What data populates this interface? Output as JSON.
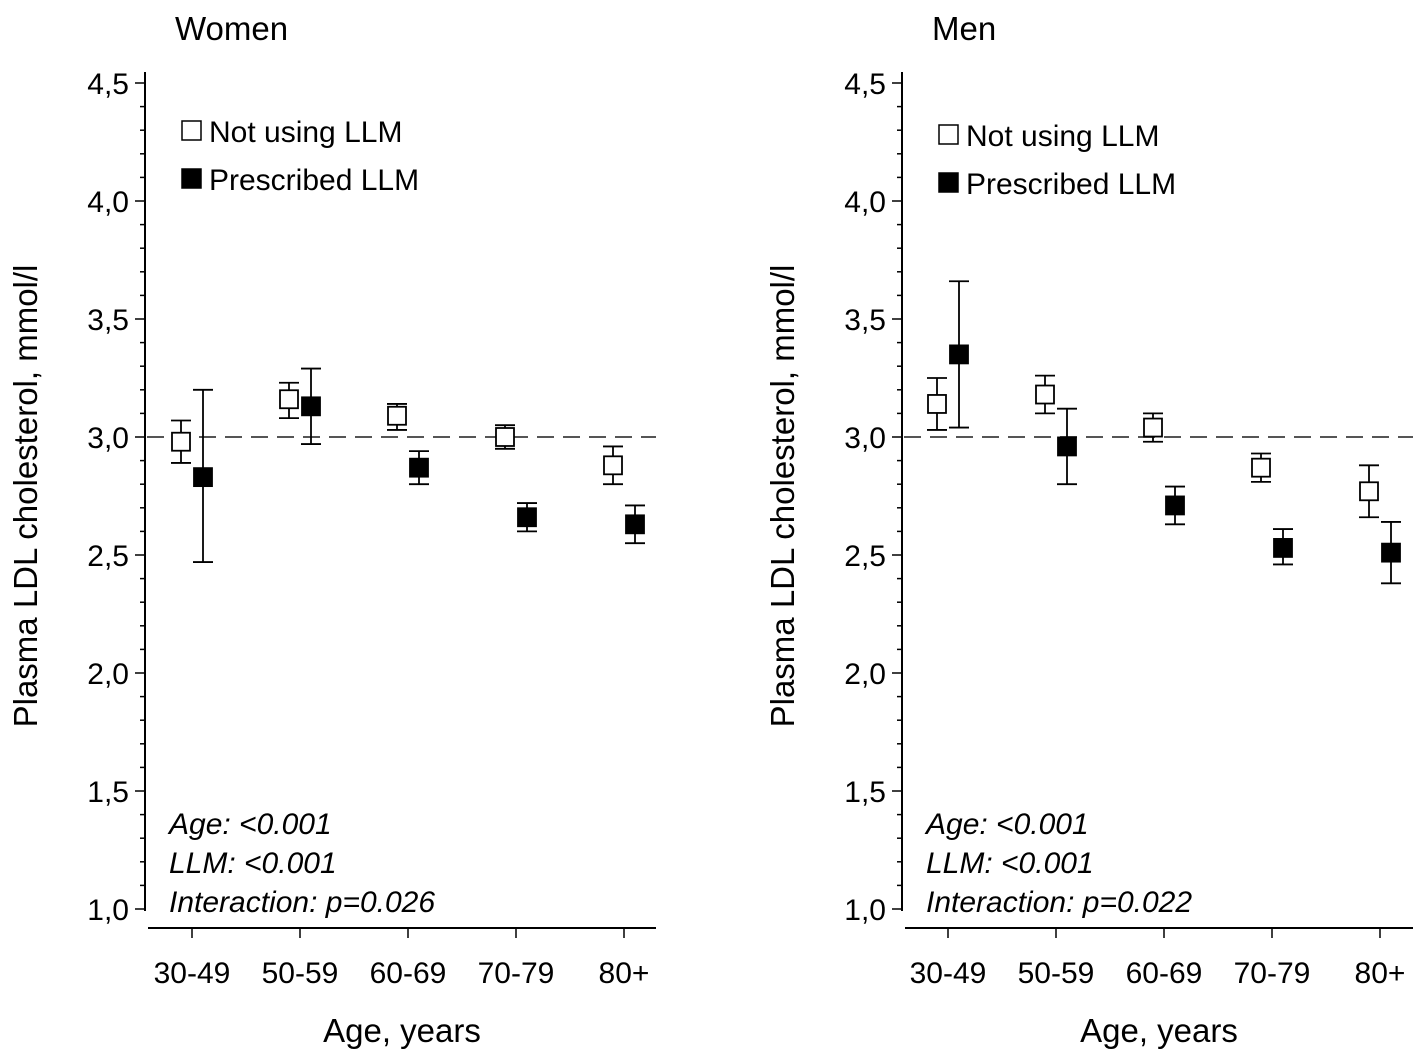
{
  "chart_data": [
    {
      "type": "scatter",
      "title": "Women",
      "xlabel": "Age, years",
      "ylabel": "Plasma LDL cholesterol, mmol/l",
      "categories": [
        "30-49",
        "50-59",
        "60-69",
        "70-79",
        "80+"
      ],
      "ylim": [
        1.0,
        4.5
      ],
      "yticks": [
        "1,0",
        "1,5",
        "2,0",
        "2,5",
        "3,0",
        "3,5",
        "4,0",
        "4,5"
      ],
      "reference_line": 3.0,
      "legend_position": "top-left",
      "grid": false,
      "series": [
        {
          "name": "Not using LLM",
          "marker": "open-square",
          "values": [
            2.98,
            3.16,
            3.09,
            3.0,
            2.88
          ],
          "err_low": [
            2.89,
            3.08,
            3.03,
            2.95,
            2.8
          ],
          "err_high": [
            3.07,
            3.23,
            3.14,
            3.05,
            2.96
          ]
        },
        {
          "name": "Prescribed LLM",
          "marker": "filled-square",
          "values": [
            2.83,
            3.13,
            2.87,
            2.66,
            2.63
          ],
          "err_low": [
            2.47,
            2.97,
            2.8,
            2.6,
            2.55
          ],
          "err_high": [
            3.2,
            3.29,
            2.94,
            2.72,
            2.71
          ]
        }
      ],
      "annotations": [
        "Age: <0.001",
        "LLM: <0.001",
        "Interaction: p=0.026"
      ]
    },
    {
      "type": "scatter",
      "title": "Men",
      "xlabel": "Age, years",
      "ylabel": "Plasma LDL cholesterol, mmol/l",
      "categories": [
        "30-49",
        "50-59",
        "60-69",
        "70-79",
        "80+"
      ],
      "ylim": [
        1.0,
        4.5
      ],
      "yticks": [
        "1,0",
        "1,5",
        "2,0",
        "2,5",
        "3,0",
        "3,5",
        "4,0",
        "4,5"
      ],
      "reference_line": 3.0,
      "legend_position": "top-left",
      "grid": false,
      "series": [
        {
          "name": "Not using LLM",
          "marker": "open-square",
          "values": [
            3.14,
            3.18,
            3.04,
            2.87,
            2.77
          ],
          "err_low": [
            3.03,
            3.1,
            2.98,
            2.81,
            2.66
          ],
          "err_high": [
            3.25,
            3.26,
            3.1,
            2.93,
            2.88
          ]
        },
        {
          "name": "Prescribed LLM",
          "marker": "filled-square",
          "values": [
            3.35,
            2.96,
            2.71,
            2.53,
            2.51
          ],
          "err_low": [
            3.04,
            2.8,
            2.63,
            2.46,
            2.38
          ],
          "err_high": [
            3.66,
            3.12,
            2.79,
            2.61,
            2.64
          ]
        }
      ],
      "annotations": [
        "Age: <0.001",
        "LLM: <0.001",
        "Interaction: p=0.022"
      ]
    }
  ]
}
